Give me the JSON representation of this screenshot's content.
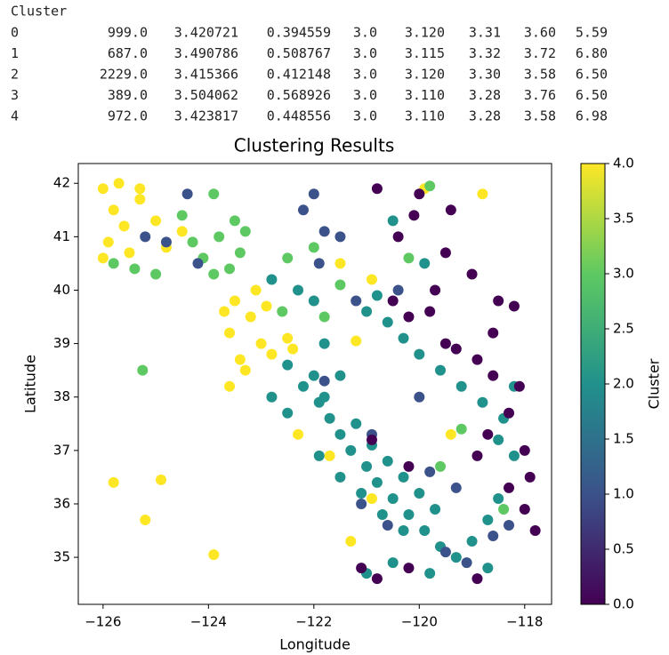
{
  "table": {
    "header": "Cluster",
    "rows": [
      [
        "0",
        "999.0",
        "3.420721",
        "0.394559",
        "3.0",
        "3.120",
        "3.31",
        "3.60",
        "5.59"
      ],
      [
        "1",
        "687.0",
        "3.490786",
        "0.508767",
        "3.0",
        "3.115",
        "3.32",
        "3.72",
        "6.80"
      ],
      [
        "2",
        "2229.0",
        "3.415366",
        "0.412148",
        "3.0",
        "3.120",
        "3.30",
        "3.58",
        "6.50"
      ],
      [
        "3",
        "389.0",
        "3.504062",
        "0.568926",
        "3.0",
        "3.110",
        "3.28",
        "3.76",
        "6.50"
      ],
      [
        "4",
        "972.0",
        "3.423817",
        "0.448556",
        "3.0",
        "3.110",
        "3.28",
        "3.58",
        "6.98"
      ]
    ]
  },
  "chart_data": {
    "type": "scatter",
    "title": "Clustering Results",
    "x_label": "Longitude",
    "y_label": "Latitude",
    "colorbar_label": "Cluster",
    "colormap": [
      "#440154",
      "#3b528b",
      "#21918c",
      "#5ec962",
      "#fde725"
    ],
    "clim": [
      0,
      4
    ],
    "cticks": [
      {
        "value": 0,
        "label": "0.0"
      },
      {
        "value": 0.5,
        "label": "0.5"
      },
      {
        "value": 1,
        "label": "1.0"
      },
      {
        "value": 1.5,
        "label": "1.5"
      },
      {
        "value": 2,
        "label": "2.0"
      },
      {
        "value": 2.5,
        "label": "2.5"
      },
      {
        "value": 3,
        "label": "3.0"
      },
      {
        "value": 3.5,
        "label": "3.5"
      },
      {
        "value": 4,
        "label": "4.0"
      }
    ],
    "xlim": [
      -126.47,
      -117.49
    ],
    "ylim": [
      34.12,
      42.37
    ],
    "xticks": [
      {
        "value": -126,
        "label": "−126"
      },
      {
        "value": -124,
        "label": "−124"
      },
      {
        "value": -122,
        "label": "−122"
      },
      {
        "value": -120,
        "label": "−120"
      },
      {
        "value": -118,
        "label": "−118"
      }
    ],
    "yticks": [
      35,
      36,
      37,
      38,
      39,
      40,
      41,
      42
    ],
    "x": [
      -126,
      -125.8,
      -125.6,
      -125.9,
      -125.3,
      -125.5,
      -125,
      -124.8,
      -125.7,
      -124.5,
      -126,
      -123.5,
      -123.2,
      -123.6,
      -123,
      -122.8,
      -123.4,
      -122.5,
      -123.1,
      -122.9,
      -123.7,
      -122.4,
      -123.3,
      -123.6,
      -125.8,
      -124.9,
      -125.2,
      -123.9,
      -125.3,
      -121.2,
      -122.3,
      -120.9,
      -121.7,
      -121.5,
      -118.8,
      -119.4,
      -119.9,
      -120.9,
      -121.3,
      -124.1,
      -123.8,
      -123.5,
      -123.4,
      -123.9,
      -124.3,
      -123.6,
      -123.3,
      -124.5,
      -123.9,
      -125.8,
      -125.4,
      -125,
      -125.25,
      -122.5,
      -122,
      -121.5,
      -119.8,
      -119.2,
      -119.6,
      -118.4,
      -120.2,
      -122.6,
      -121.8,
      -122.5,
      -122.2,
      -121.9,
      -121.7,
      -121.5,
      -121.3,
      -121,
      -120.8,
      -120.5,
      -120.2,
      -119.9,
      -119.6,
      -122,
      -121.8,
      -121.2,
      -120.9,
      -120.6,
      -120.3,
      -120,
      -119.7,
      -122.8,
      -122.5,
      -121.9,
      -121.5,
      -121.1,
      -120.7,
      -120.3,
      -119.3,
      -119,
      -118.7,
      -118.5,
      -118.7,
      -119.8,
      -120.5,
      -121,
      -121,
      -120.6,
      -120.3,
      -120,
      -119.6,
      -119.2,
      -118.8,
      -118.4,
      -118.2,
      -118.5,
      -118.2,
      -120.8,
      -122.8,
      -122.3,
      -121.8,
      -121.5,
      -122,
      -119.9,
      -120.5,
      -124.4,
      -124.8,
      -125.2,
      -124.2,
      -122,
      -121.8,
      -121.5,
      -121.9,
      -121.2,
      -120.4,
      -121.1,
      -120.6,
      -119.5,
      -119.1,
      -118.6,
      -118.3,
      -121.8,
      -120.9,
      -119.8,
      -122.2,
      -120,
      -119.3,
      -120.8,
      -120,
      -119.4,
      -120.4,
      -119.5,
      -119,
      -118.5,
      -118.2,
      -119.8,
      -119.5,
      -118.9,
      -118.6,
      -118.1,
      -118.3,
      -118,
      -117.9,
      -118.3,
      -118,
      -117.8,
      -118.9,
      -118.7,
      -120.5,
      -120.2,
      -119.7,
      -120.1,
      -121.1,
      -120.8,
      -120.2,
      -118.9,
      -120.2,
      -120.9,
      -118.6,
      -119.3
    ],
    "y": [
      41.9,
      41.5,
      41.2,
      40.9,
      41.7,
      40.7,
      41.3,
      40.8,
      42,
      41.1,
      40.6,
      39.8,
      39.5,
      39.2,
      39,
      38.8,
      38.7,
      39.1,
      40,
      39.7,
      39.6,
      38.9,
      38.5,
      38.2,
      36.4,
      36.45,
      35.7,
      35.05,
      41.9,
      39.05,
      37.3,
      40.2,
      36.9,
      40.5,
      41.8,
      37.3,
      41.9,
      36.1,
      35.3,
      40.6,
      41,
      41.3,
      40.7,
      40.3,
      40.9,
      40.4,
      41.1,
      41.4,
      41.8,
      40.5,
      40.4,
      40.3,
      38.5,
      40.6,
      40.8,
      40.1,
      41.95,
      37.4,
      36.7,
      35.9,
      40.6,
      39.6,
      39.5,
      38.6,
      38.2,
      37.9,
      37.6,
      37.3,
      37,
      36.7,
      36.4,
      36.1,
      35.8,
      35.5,
      35.2,
      38.4,
      38,
      37.5,
      37.1,
      36.8,
      36.5,
      36.2,
      35.9,
      38,
      37.7,
      36.9,
      36.5,
      36.2,
      35.8,
      35.5,
      35,
      35.3,
      35.7,
      36.1,
      34.8,
      34.7,
      34.9,
      34.7,
      39.6,
      39.4,
      39.1,
      38.8,
      38.5,
      38.2,
      37.9,
      37.6,
      38.2,
      37.2,
      36.9,
      39.9,
      40.2,
      40,
      39,
      38.4,
      39.8,
      40.5,
      41.3,
      41.8,
      40.9,
      41,
      40.5,
      41.8,
      41.1,
      41,
      40.5,
      39.8,
      40,
      36,
      35.6,
      35.1,
      34.9,
      35.4,
      35.6,
      38.3,
      37.3,
      36.6,
      41.5,
      38,
      36.3,
      41.9,
      41.8,
      41.5,
      41,
      40.7,
      40.3,
      39.8,
      39.7,
      39.6,
      39,
      38.7,
      38.4,
      38.2,
      37.7,
      37,
      36.5,
      36.3,
      35.9,
      35.5,
      36.9,
      37.3,
      39.8,
      39.5,
      40,
      41.4,
      34.8,
      34.6,
      34.8,
      34.6,
      36.7,
      37.2,
      39.2,
      38.9
    ],
    "c": [
      4,
      4,
      4,
      4,
      4,
      4,
      4,
      4,
      4,
      4,
      4,
      4,
      4,
      4,
      4,
      4,
      4,
      4,
      4,
      4,
      4,
      4,
      4,
      4,
      4,
      4,
      4,
      4,
      4,
      4,
      4,
      4,
      4,
      4,
      4,
      4,
      4,
      4,
      4,
      3,
      3,
      3,
      3,
      3,
      3,
      3,
      3,
      3,
      3,
      3,
      3,
      3,
      3,
      3,
      3,
      3,
      3,
      3,
      3,
      3,
      3,
      3,
      3,
      2,
      2,
      2,
      2,
      2,
      2,
      2,
      2,
      2,
      2,
      2,
      2,
      2,
      2,
      2,
      2,
      2,
      2,
      2,
      2,
      2,
      2,
      2,
      2,
      2,
      2,
      2,
      2,
      2,
      2,
      2,
      2,
      2,
      2,
      2,
      2,
      2,
      2,
      2,
      2,
      2,
      2,
      2,
      2,
      2,
      2,
      2,
      2,
      2,
      2,
      2,
      2,
      2,
      2,
      1,
      1,
      1,
      1,
      1,
      1,
      1,
      1,
      1,
      1,
      1,
      1,
      1,
      1,
      1,
      1,
      1,
      1,
      1,
      1,
      1,
      1,
      0,
      0,
      0,
      0,
      0,
      0,
      0,
      0,
      0,
      0,
      0,
      0,
      0,
      0,
      0,
      0,
      0,
      0,
      0,
      0,
      0,
      0,
      0,
      0,
      0,
      0,
      0,
      0,
      0,
      0,
      0,
      0,
      0
    ]
  }
}
